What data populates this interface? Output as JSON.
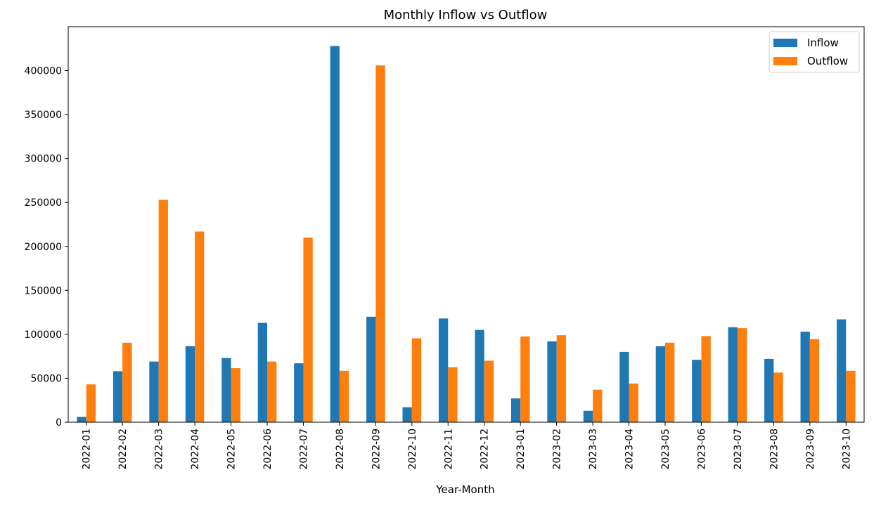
{
  "chart_data": {
    "type": "bar",
    "title": "Monthly Inflow vs Outflow",
    "xlabel": "Year-Month",
    "ylabel": "",
    "ylim": [
      0,
      450000
    ],
    "yticks": [
      0,
      50000,
      100000,
      150000,
      200000,
      250000,
      300000,
      350000,
      400000
    ],
    "grid": false,
    "legend_position": "top-right",
    "categories": [
      "2022-01",
      "2022-02",
      "2022-03",
      "2022-04",
      "2022-05",
      "2022-06",
      "2022-07",
      "2022-08",
      "2022-09",
      "2022-10",
      "2022-11",
      "2022-12",
      "2023-01",
      "2023-02",
      "2023-03",
      "2023-04",
      "2023-05",
      "2023-06",
      "2023-07",
      "2023-08",
      "2023-09",
      "2023-10"
    ],
    "series": [
      {
        "name": "Inflow",
        "color": "#1f77b4",
        "values": [
          6000,
          58000,
          69000,
          86500,
          73000,
          113000,
          67000,
          428000,
          120000,
          17000,
          118000,
          105000,
          27000,
          92000,
          13000,
          80000,
          86500,
          71000,
          108000,
          72000,
          103000,
          117000
        ]
      },
      {
        "name": "Outflow",
        "color": "#ff7f0e",
        "values": [
          43000,
          90500,
          253000,
          217000,
          61500,
          69000,
          210000,
          58500,
          406000,
          95500,
          62500,
          70000,
          97500,
          99000,
          37000,
          44000,
          90500,
          98000,
          107000,
          56500,
          94500,
          58500
        ]
      }
    ]
  }
}
